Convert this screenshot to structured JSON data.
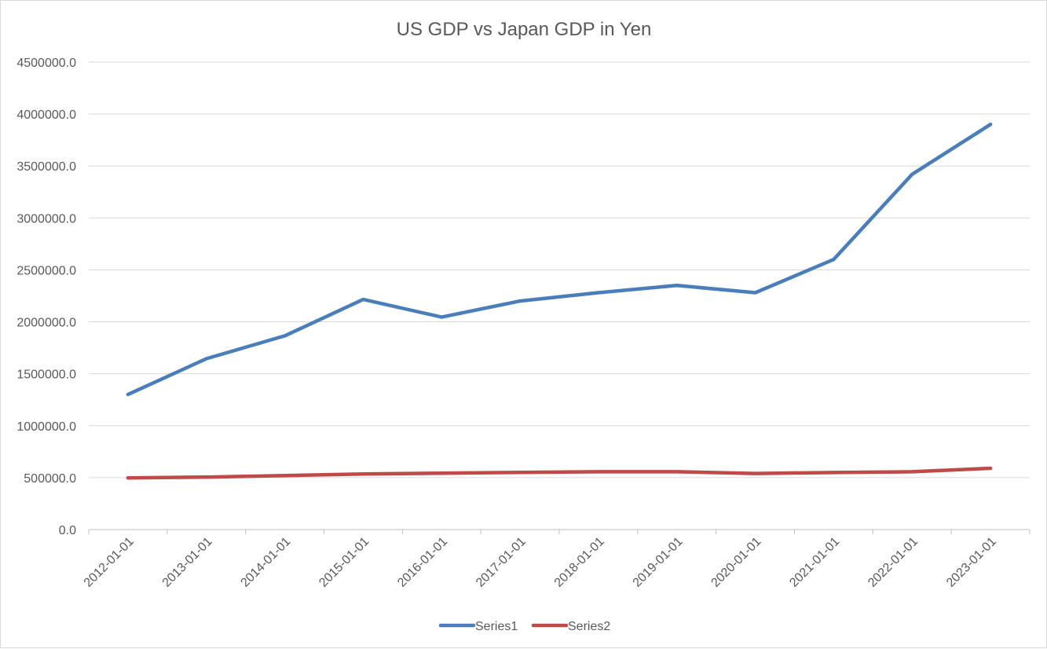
{
  "chart_data": {
    "type": "line",
    "title": "US GDP vs Japan GDP in Yen",
    "xlabel": "",
    "ylabel": "",
    "ylim": [
      0,
      4500000
    ],
    "y_ticks": [
      0,
      500000,
      1000000,
      1500000,
      2000000,
      2500000,
      3000000,
      3500000,
      4000000,
      4500000
    ],
    "y_tick_labels": [
      "0.0",
      "500000.0",
      "1000000.0",
      "1500000.0",
      "2000000.0",
      "2500000.0",
      "3000000.0",
      "3500000.0",
      "4000000.0",
      "4500000.0"
    ],
    "grid": true,
    "legend_position": "bottom",
    "categories": [
      "2012-01-01",
      "2013-01-01",
      "2014-01-01",
      "2015-01-01",
      "2016-01-01",
      "2017-01-01",
      "2018-01-01",
      "2019-01-01",
      "2020-01-01",
      "2021-01-01",
      "2022-01-01",
      "2023-01-01"
    ],
    "series": [
      {
        "name": "Series1",
        "color": "#4a7ebb",
        "values": [
          1300000,
          1645000,
          1865000,
          2215000,
          2045000,
          2200000,
          2280000,
          2350000,
          2280000,
          2600000,
          3420000,
          3900000
        ]
      },
      {
        "name": "Series2",
        "color": "#be4b48",
        "values": [
          497000,
          505000,
          520000,
          535000,
          543000,
          550000,
          557000,
          557000,
          540000,
          549000,
          557000,
          590000
        ]
      }
    ]
  }
}
